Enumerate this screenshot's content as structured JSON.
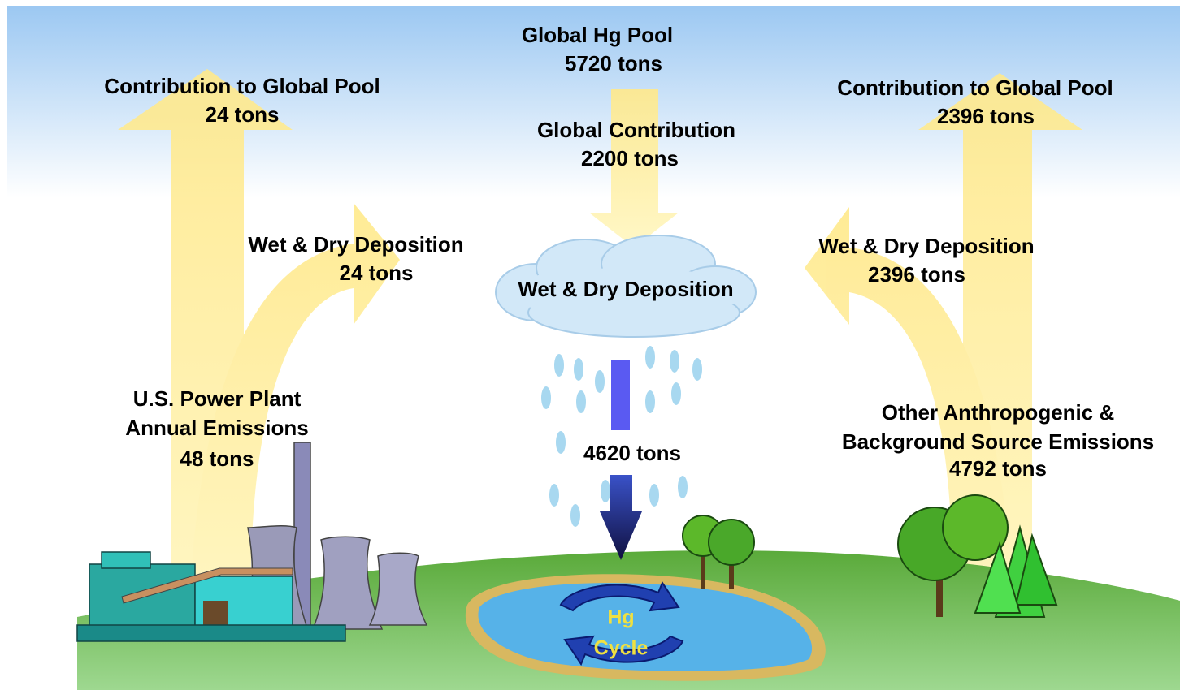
{
  "global_pool": {
    "title": "Global Hg Pool",
    "amount": "5720 tons"
  },
  "global_contribution": {
    "title": "Global Contribution",
    "amount": "2200 tons"
  },
  "left": {
    "contribution": {
      "title": "Contribution to Global Pool",
      "amount": "24 tons"
    },
    "deposition": {
      "title": "Wet & Dry Deposition",
      "amount": "24 tons"
    },
    "source": {
      "lines": [
        "U.S. Power Plant",
        "Annual Emissions"
      ],
      "amount": "48 tons"
    }
  },
  "center": {
    "cloud": "Wet & Dry Deposition",
    "rain_amount": "4620 tons",
    "cycle": [
      "Hg",
      "Cycle"
    ]
  },
  "right": {
    "contribution": {
      "title": "Contribution to Global Pool",
      "amount": "2396 tons"
    },
    "deposition": {
      "title": "Wet & Dry Deposition",
      "amount": "2396 tons"
    },
    "source": {
      "lines": [
        "Other Anthropogenic &",
        "Background Source Emissions"
      ],
      "amount": "4792 tons"
    }
  }
}
